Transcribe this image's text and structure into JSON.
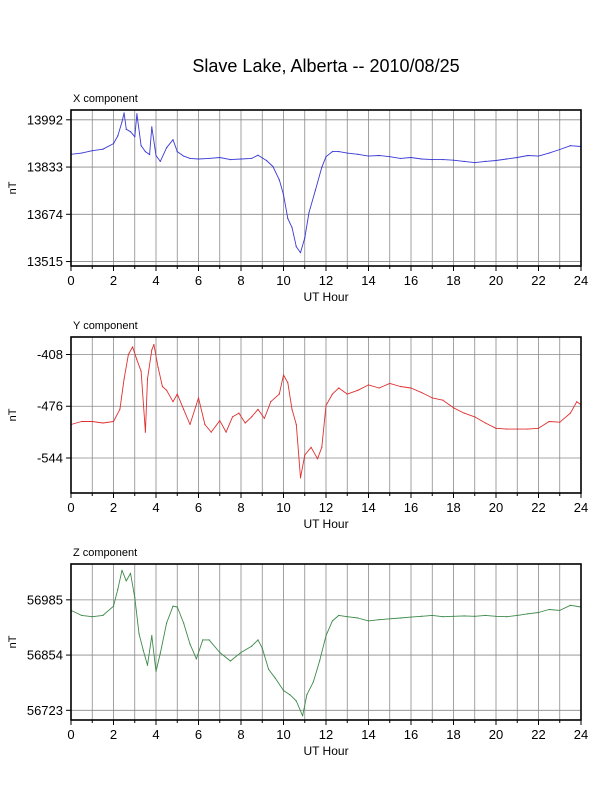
{
  "title": "Slave Lake, Alberta -- 2010/08/25",
  "chart_data": [
    {
      "type": "line",
      "panel_title": "X component",
      "xlabel": "UT Hour",
      "ylabel": "nT",
      "xlim": [
        0,
        24
      ],
      "ylim": [
        13500,
        14025
      ],
      "xticks": [
        0,
        2,
        4,
        6,
        8,
        10,
        12,
        14,
        16,
        18,
        20,
        22,
        24
      ],
      "yticks": [
        13515,
        13674,
        13833,
        13992
      ],
      "grid": true,
      "color": "#3a3ad6",
      "series": [
        {
          "x": [
            0,
            0.5,
            1,
            1.5,
            2,
            2.2,
            2.4,
            2.5,
            2.6,
            2.8,
            3,
            3.1,
            3.3,
            3.5,
            3.7,
            3.8,
            4,
            4.2,
            4.5,
            4.8,
            5,
            5.3,
            5.6,
            6,
            6.5,
            7,
            7.5,
            8,
            8.5,
            8.8,
            9.2,
            9.5,
            9.8,
            10,
            10.2,
            10.4,
            10.6,
            10.8,
            11,
            11.2,
            11.5,
            11.8,
            12,
            12.3,
            12.6,
            13,
            13.5,
            14,
            14.5,
            15,
            15.5,
            16,
            16.5,
            17,
            17.5,
            18,
            18.5,
            19,
            19.5,
            20,
            20.5,
            21,
            21.5,
            22,
            22.5,
            23,
            23.5,
            24
          ],
          "y": [
            13876,
            13880,
            13888,
            13893,
            13912,
            13938,
            13985,
            14015,
            13960,
            13952,
            13935,
            14012,
            13905,
            13885,
            13875,
            13968,
            13872,
            13852,
            13898,
            13925,
            13885,
            13870,
            13862,
            13860,
            13862,
            13865,
            13858,
            13860,
            13862,
            13873,
            13855,
            13835,
            13790,
            13740,
            13660,
            13630,
            13565,
            13545,
            13595,
            13680,
            13755,
            13832,
            13868,
            13885,
            13885,
            13880,
            13876,
            13870,
            13872,
            13868,
            13862,
            13865,
            13860,
            13858,
            13858,
            13856,
            13852,
            13848,
            13852,
            13855,
            13860,
            13865,
            13872,
            13870,
            13880,
            13892,
            13905,
            13902
          ]
        }
      ]
    },
    {
      "type": "line",
      "panel_title": "Y component",
      "xlabel": "UT Hour",
      "ylabel": "nT",
      "xlim": [
        0,
        24
      ],
      "ylim": [
        -590,
        -385
      ],
      "xticks": [
        0,
        2,
        4,
        6,
        8,
        10,
        12,
        14,
        16,
        18,
        20,
        22,
        24
      ],
      "yticks": [
        -408,
        -476,
        -544
      ],
      "grid": true,
      "color": "#e03030",
      "series": [
        {
          "x": [
            0,
            0.5,
            1,
            1.5,
            2,
            2.3,
            2.5,
            2.7,
            2.9,
            3.1,
            3.3,
            3.5,
            3.6,
            3.8,
            3.9,
            4.1,
            4.3,
            4.5,
            4.8,
            5,
            5.3,
            5.6,
            6,
            6.3,
            6.6,
            7,
            7.3,
            7.6,
            7.9,
            8.2,
            8.5,
            8.8,
            9.1,
            9.4,
            9.8,
            10,
            10.2,
            10.4,
            10.6,
            10.8,
            11,
            11.3,
            11.6,
            11.8,
            12,
            12.3,
            12.6,
            13,
            13.5,
            14,
            14.5,
            15,
            15.5,
            16,
            16.5,
            17,
            17.5,
            18,
            18.5,
            19,
            19.5,
            20,
            20.5,
            21,
            21.5,
            22,
            22.5,
            23,
            23.5,
            23.8,
            24
          ],
          "y": [
            -500,
            -496,
            -496,
            -498,
            -496,
            -480,
            -440,
            -408,
            -398,
            -415,
            -430,
            -510,
            -440,
            -402,
            -395,
            -425,
            -450,
            -455,
            -470,
            -460,
            -480,
            -500,
            -465,
            -500,
            -510,
            -495,
            -510,
            -490,
            -485,
            -498,
            -490,
            -480,
            -492,
            -470,
            -460,
            -435,
            -445,
            -480,
            -500,
            -570,
            -540,
            -530,
            -545,
            -530,
            -475,
            -460,
            -452,
            -460,
            -455,
            -448,
            -452,
            -446,
            -450,
            -452,
            -458,
            -465,
            -468,
            -478,
            -485,
            -490,
            -498,
            -505,
            -506,
            -506,
            -506,
            -505,
            -496,
            -497,
            -485,
            -470,
            -474
          ]
        }
      ]
    },
    {
      "type": "line",
      "panel_title": "Z component",
      "xlabel": "UT Hour",
      "ylabel": "nT",
      "xlim": [
        0,
        24
      ],
      "ylim": [
        56700,
        57070
      ],
      "xticks": [
        0,
        2,
        4,
        6,
        8,
        10,
        12,
        14,
        16,
        18,
        20,
        22,
        24
      ],
      "yticks": [
        56723,
        56854,
        56985
      ],
      "grid": true,
      "color": "#3d8a4a",
      "series": [
        {
          "x": [
            0,
            0.5,
            1,
            1.5,
            2,
            2.2,
            2.4,
            2.6,
            2.8,
            3,
            3.2,
            3.4,
            3.6,
            3.8,
            4,
            4.2,
            4.5,
            4.8,
            5,
            5.3,
            5.6,
            5.9,
            6.2,
            6.5,
            7,
            7.5,
            8,
            8.5,
            8.8,
            9,
            9.3,
            9.6,
            10,
            10.3,
            10.6,
            10.9,
            11.1,
            11.4,
            11.7,
            12,
            12.3,
            12.6,
            13,
            13.5,
            14,
            14.5,
            15,
            15.5,
            16,
            16.5,
            17,
            17.5,
            18,
            18.5,
            19,
            19.5,
            20,
            20.5,
            21,
            21.5,
            22,
            22.5,
            23,
            23.5,
            24
          ],
          "y": [
            56960,
            56948,
            56945,
            56948,
            56970,
            57010,
            57055,
            57030,
            57048,
            56990,
            56905,
            56865,
            56830,
            56900,
            56815,
            56858,
            56930,
            56970,
            56968,
            56930,
            56880,
            56845,
            56890,
            56890,
            56860,
            56840,
            56860,
            56875,
            56890,
            56870,
            56820,
            56800,
            56770,
            56760,
            56745,
            56710,
            56760,
            56790,
            56840,
            56900,
            56935,
            56948,
            56945,
            56942,
            56935,
            56938,
            56940,
            56942,
            56944,
            56946,
            56948,
            56945,
            56946,
            56947,
            56946,
            56948,
            56946,
            56945,
            56948,
            56952,
            56955,
            56962,
            56960,
            56972,
            56968
          ]
        }
      ]
    }
  ]
}
